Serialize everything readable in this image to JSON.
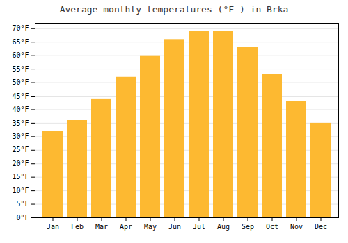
{
  "chart_data": {
    "type": "bar",
    "title": "Average monthly temperatures (°F ) in Brka",
    "categories": [
      "Jan",
      "Feb",
      "Mar",
      "Apr",
      "May",
      "Jun",
      "Jul",
      "Aug",
      "Sep",
      "Oct",
      "Nov",
      "Dec"
    ],
    "values": [
      32,
      36,
      44,
      52,
      60,
      66,
      69,
      69,
      63,
      53,
      43,
      35
    ],
    "color": "#FDB931",
    "ylim": [
      0,
      72
    ],
    "yticks": [
      {
        "value": 0,
        "label": "0°F"
      },
      {
        "value": 5,
        "label": "5°F"
      },
      {
        "value": 10,
        "label": "10°F"
      },
      {
        "value": 15,
        "label": "15°F"
      },
      {
        "value": 20,
        "label": "20°F"
      },
      {
        "value": 25,
        "label": "25°F"
      },
      {
        "value": 30,
        "label": "30°F"
      },
      {
        "value": 35,
        "label": "35°F"
      },
      {
        "value": 40,
        "label": "40°F"
      },
      {
        "value": 45,
        "label": "45°F"
      },
      {
        "value": 50,
        "label": "50°F"
      },
      {
        "value": 55,
        "label": "55°F"
      },
      {
        "value": 60,
        "label": "60°F"
      },
      {
        "value": 65,
        "label": "65°F"
      },
      {
        "value": 70,
        "label": "70°F"
      }
    ],
    "grid": true
  }
}
